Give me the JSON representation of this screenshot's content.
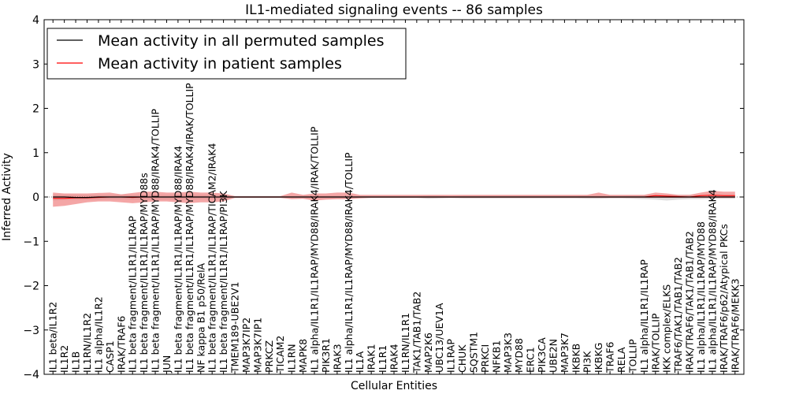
{
  "chart_data": {
    "type": "line",
    "title": "IL1-mediated signaling events -- 86 samples",
    "xlabel": "Cellular Entities",
    "ylabel": "Inferred Activity",
    "ylim": [
      -4,
      4
    ],
    "yticks": [
      -4,
      -3,
      -2,
      -1,
      0,
      1,
      2,
      3,
      4
    ],
    "grid": false,
    "legend_position": "top-left",
    "categories": [
      "IL1 beta/IL1R2",
      "IL1R2",
      "IL1B",
      "IL1RN/IL1R2",
      "IL1 alpha/IL1R2",
      "CASP1",
      "IRAK/TRAF6",
      "IL1 beta fragment/IL1R1/IL1RAP",
      "IL1 beta fragment/IL1R1/IL1RAP/MYD88s",
      "IL1 beta fragment/IL1R1/IL1RAP/MYD88/IRAK4/TOLLIP",
      "JUN",
      "IL1 beta fragment/IL1R1/IL1RAP/MYD88/IRAK4",
      "IL1 beta fragment/IL1R1/IL1RAP/MYD88/IRAK4/IRAK/TOLLIP",
      "NF kappa B1 p50/RelA",
      "IL1 beta fragment/IL1R1/IL1RAP/TICAM2/IRAK4",
      "IL1 beta fragment/IL1R1/IL1RAP/PI3K",
      "TMEM189-UBE2V1",
      "MAP3K7IP2",
      "MAP3K7IP1",
      "PRKCZ",
      "TICAM2",
      "IL1RN",
      "MAPK8",
      "IL1 alpha/IL1R1/IL1RAP/MYD88/IRAK4/IRAK/TOLLIP",
      "PIK3R1",
      "IRAK3",
      "IL1 alpha/IL1R1/IL1RAP/MYD88/IRAK4/TOLLIP",
      "IL1A",
      "IRAK1",
      "IL1R1",
      "IRAK4",
      "IL1RN/IL1R1",
      "TAK1/TAB1/TAB2",
      "MAP2K6",
      "UBC13/UEV1A",
      "IL1RAP",
      "CHUK",
      "SQSTM1",
      "PRKCI",
      "NFKB1",
      "MAP3K3",
      "MYD88",
      "ERC1",
      "PIK3CA",
      "UBE2N",
      "MAP3K7",
      "IKBKB",
      "PI3K",
      "IKBKG",
      "TRAF6",
      "RELA",
      "TOLLIP",
      "IL1 alpha/IL1R1/IL1RAP",
      "IRAK/TOLLIP",
      "IKK complex/ELKS",
      "TRAF6/TAK1/TAB1/TAB2",
      "IRAK/TRAF6/TAK1/TAB1/TAB2",
      "IL1 alpha/IL1R1/IL1RAP/MYD88",
      "IL1 alpha/IL1R1/IL1RAP/MYD88/IRAK4",
      "IRAK/TRAF6/p62/Atypical PKCs",
      "IRAK/TRAF6/MEKK3"
    ],
    "series": [
      {
        "name": "Mean activity in all permuted samples",
        "color": "#000000",
        "values": [
          0.0,
          0.0,
          -0.01,
          -0.01,
          0.0,
          0.0,
          0.0,
          0.0,
          0.0,
          0.0,
          0.0,
          0.0,
          0.0,
          0.0,
          0.0,
          0.0,
          0.0,
          0.0,
          0.0,
          0.0,
          0.0,
          0.0,
          0.0,
          0.0,
          0.0,
          0.0,
          0.0,
          0.0,
          0.0,
          0.0,
          0.0,
          0.0,
          0.0,
          0.0,
          0.0,
          0.0,
          0.0,
          0.0,
          0.0,
          0.0,
          0.0,
          0.0,
          0.0,
          0.0,
          0.0,
          0.0,
          0.0,
          0.0,
          0.0,
          0.0,
          0.0,
          0.0,
          0.0,
          0.0,
          0.0,
          0.0,
          0.0,
          0.0,
          0.0,
          0.0,
          0.0
        ],
        "band_lower": [
          -0.08,
          -0.07,
          -0.07,
          -0.06,
          -0.06,
          -0.05,
          -0.05,
          -0.06,
          -0.06,
          -0.06,
          -0.06,
          -0.06,
          -0.06,
          -0.05,
          -0.05,
          -0.05,
          -0.02,
          -0.02,
          -0.02,
          -0.02,
          -0.02,
          -0.02,
          -0.03,
          -0.03,
          -0.03,
          -0.03,
          -0.03,
          -0.02,
          -0.02,
          -0.02,
          -0.02,
          -0.02,
          -0.02,
          -0.04,
          -0.03,
          -0.02,
          -0.03,
          -0.03,
          -0.03,
          -0.03,
          -0.03,
          -0.03,
          -0.03,
          -0.03,
          -0.03,
          -0.03,
          -0.03,
          -0.04,
          -0.04,
          -0.03,
          -0.03,
          -0.04,
          -0.05,
          -0.06,
          -0.08,
          -0.06,
          -0.05,
          -0.05,
          -0.04,
          -0.04,
          -0.04
        ],
        "band_upper": [
          0.06,
          0.05,
          0.05,
          0.05,
          0.05,
          0.05,
          0.05,
          0.05,
          0.05,
          0.05,
          0.05,
          0.05,
          0.05,
          0.05,
          0.05,
          0.05,
          0.02,
          0.02,
          0.02,
          0.02,
          0.02,
          0.02,
          0.03,
          0.03,
          0.03,
          0.03,
          0.03,
          0.02,
          0.02,
          0.02,
          0.02,
          0.02,
          0.02,
          0.03,
          0.03,
          0.02,
          0.03,
          0.03,
          0.03,
          0.03,
          0.03,
          0.03,
          0.03,
          0.03,
          0.03,
          0.03,
          0.03,
          0.04,
          0.04,
          0.03,
          0.03,
          0.04,
          0.04,
          0.05,
          0.05,
          0.05,
          0.05,
          0.05,
          0.05,
          0.05,
          0.05
        ]
      },
      {
        "name": "Mean activity in patient samples",
        "color": "#ff0000",
        "band_color": "#f08080",
        "values": [
          -0.03,
          -0.03,
          -0.02,
          -0.02,
          -0.01,
          0.0,
          0.0,
          -0.01,
          0.0,
          0.0,
          0.0,
          0.0,
          0.0,
          0.0,
          0.0,
          0.0,
          0.0,
          0.0,
          0.0,
          0.0,
          0.0,
          0.0,
          0.0,
          0.0,
          0.0,
          0.0,
          0.0,
          0.0,
          0.0,
          0.0,
          0.0,
          0.0,
          0.0,
          0.0,
          0.0,
          0.0,
          0.0,
          0.0,
          0.0,
          0.0,
          0.0,
          0.0,
          0.0,
          0.0,
          0.0,
          0.0,
          0.0,
          0.0,
          0.0,
          0.0,
          0.0,
          0.0,
          0.0,
          0.03,
          0.02,
          0.01,
          0.0,
          0.03,
          0.04,
          0.03,
          0.03
        ],
        "band_lower": [
          -0.22,
          -0.2,
          -0.16,
          -0.12,
          -0.1,
          -0.1,
          -0.12,
          -0.14,
          -0.12,
          -0.1,
          -0.1,
          -0.12,
          -0.14,
          -0.12,
          -0.12,
          -0.1,
          -0.02,
          -0.02,
          -0.02,
          -0.02,
          -0.02,
          -0.05,
          -0.04,
          -0.08,
          -0.06,
          -0.05,
          -0.05,
          -0.03,
          -0.02,
          -0.02,
          -0.02,
          -0.02,
          -0.02,
          -0.02,
          -0.02,
          -0.02,
          -0.02,
          -0.02,
          -0.02,
          -0.02,
          -0.02,
          -0.02,
          -0.02,
          -0.02,
          -0.02,
          -0.02,
          -0.02,
          -0.02,
          -0.02,
          -0.02,
          -0.02,
          -0.02,
          -0.02,
          -0.02,
          -0.02,
          -0.02,
          -0.02,
          -0.02,
          -0.02,
          -0.02,
          -0.02
        ],
        "band_upper": [
          0.1,
          0.08,
          0.08,
          0.08,
          0.09,
          0.1,
          0.06,
          0.09,
          0.12,
          0.12,
          0.1,
          0.1,
          0.12,
          0.1,
          0.1,
          0.08,
          0.02,
          0.02,
          0.02,
          0.02,
          0.02,
          0.1,
          0.05,
          0.08,
          0.08,
          0.1,
          0.1,
          0.05,
          0.05,
          0.05,
          0.05,
          0.05,
          0.05,
          0.05,
          0.05,
          0.05,
          0.05,
          0.05,
          0.05,
          0.05,
          0.05,
          0.05,
          0.05,
          0.05,
          0.05,
          0.05,
          0.05,
          0.05,
          0.1,
          0.05,
          0.05,
          0.05,
          0.05,
          0.1,
          0.08,
          0.05,
          0.05,
          0.1,
          0.14,
          0.12,
          0.12
        ]
      }
    ]
  }
}
